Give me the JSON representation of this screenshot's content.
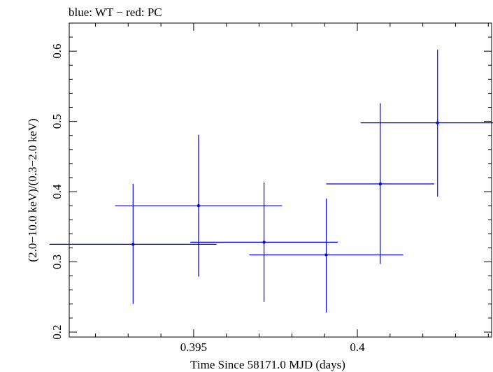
{
  "chart_data": {
    "type": "scatter",
    "title": "blue: WT − red: PC",
    "xlabel": "Time Since 58171.0 MJD (days)",
    "ylabel": "(2.0−10.0 keV)/(0.3−2.0 keV)",
    "xlim": [
      0.3912,
      0.4041
    ],
    "ylim": [
      0.193,
      0.64
    ],
    "x_ticks": [
      {
        "value": 0.395,
        "label": "0.395"
      },
      {
        "value": 0.4,
        "label": "0.4"
      }
    ],
    "y_ticks": [
      {
        "value": 0.2,
        "label": "0.2"
      },
      {
        "value": 0.3,
        "label": "0.3"
      },
      {
        "value": 0.4,
        "label": "0.4"
      },
      {
        "value": 0.5,
        "label": "0.5"
      },
      {
        "value": 0.6,
        "label": "0.6"
      }
    ],
    "x_minor_step": 0.001,
    "y_minor_step": 0.02,
    "grid": false,
    "series": [
      {
        "color": "#0000e6",
        "points": [
          {
            "x": 0.39315,
            "y": 0.325,
            "xerr_low": 0.00255,
            "xerr_high": 0.00255,
            "y_low": 0.24,
            "y_high": 0.411
          },
          {
            "x": 0.39515,
            "y": 0.38,
            "xerr_low": 0.00255,
            "xerr_high": 0.00255,
            "y_low": 0.279,
            "y_high": 0.481
          },
          {
            "x": 0.39715,
            "y": 0.328,
            "xerr_low": 0.00225,
            "xerr_high": 0.00225,
            "y_low": 0.243,
            "y_high": 0.413
          },
          {
            "x": 0.39905,
            "y": 0.31,
            "xerr_low": 0.00235,
            "xerr_high": 0.00235,
            "y_low": 0.228,
            "y_high": 0.39
          },
          {
            "x": 0.4007,
            "y": 0.411,
            "xerr_low": 0.00165,
            "xerr_high": 0.00165,
            "y_low": 0.297,
            "y_high": 0.526
          },
          {
            "x": 0.40245,
            "y": 0.498,
            "xerr_low": 0.00235,
            "xerr_high": 0.00235,
            "y_low": 0.393,
            "y_high": 0.602
          }
        ]
      }
    ]
  }
}
